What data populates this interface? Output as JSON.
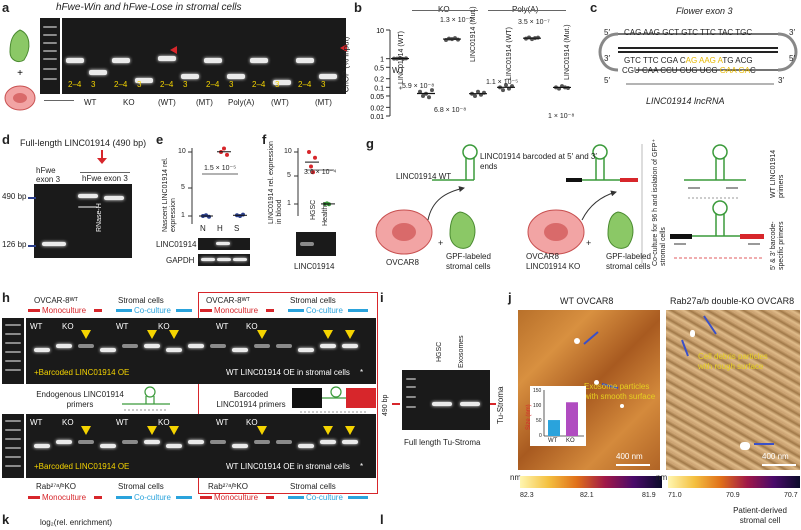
{
  "panel_a": {
    "label": "a",
    "title": "hFwe-Win and hFwe-Lose in stromal cells",
    "lane_marks": [
      "2–4",
      "3",
      "2–4",
      "3",
      "2–4",
      "3",
      "2–4",
      "3",
      "2–4",
      "3",
      "2–4",
      "3"
    ],
    "groups": [
      "WT",
      "KO",
      "(WT)",
      "(MT)",
      "Poly(A)",
      "(WT)",
      "(MT)"
    ]
  },
  "panel_b": {
    "label": "b",
    "ylabel": "ChOP (% input)",
    "yticks": [
      "10",
      "1",
      "0.5",
      "0.2",
      "0.1",
      "0.05",
      "0.02",
      "0.01"
    ],
    "header_ko": "KO",
    "header_polya": "Poly(A)",
    "cats": [
      "WT",
      "+ LINC01914 (WT)",
      "LINC01914 (Mut.)",
      "LINC01914 (WT)",
      "LINC01914 (Mut.)"
    ],
    "pvals": [
      "5.9 × 10⁻⁸",
      "1.3 × 10⁻⁵",
      "6.8 × 10⁻⁸",
      "1.1 × 10⁻⁵",
      "3.5 × 10⁻⁷",
      "1 × 10⁻⁸"
    ]
  },
  "panel_c": {
    "label": "c",
    "title": "Flower exon 3",
    "seq1": "CAG AAG GCT GTC TTC TAC TGC",
    "seq2a": "GTC TTC CGA C",
    "seq2b": "AG AAG A",
    "seq2c": "TG ACG",
    "seq3a": "CGU CAA CCU CUG UCG ",
    "seq3b": "GAA GA",
    "seq3c": "C",
    "p5a": "5′",
    "p3a": "3′",
    "p3b": "3′",
    "p5b": "5′",
    "p5c": "5′",
    "p3c": "3′",
    "caption": "LINC01914 lncRNA"
  },
  "panel_d": {
    "label": "d",
    "title": "Full-length LINC01914 (490 bp)",
    "lane1": "hFwe exon 3",
    "lane2": "hFwe exon 3",
    "marker1": "490 bp",
    "marker2": "126 bp",
    "side": "RNase-H"
  },
  "panel_e": {
    "label": "e",
    "ylabel": "Nascent LINC01914 rel. expression",
    "yticks": [
      "10",
      "5",
      "1"
    ],
    "pval": "1.5 × 10⁻⁵",
    "cats": [
      "N",
      "H",
      "S"
    ],
    "blot1": "LINC01914",
    "blot2": "GAPDH"
  },
  "panel_f": {
    "label": "f",
    "ylabel": "LINC01914 rel. expression in blood",
    "yticks": [
      "10",
      "5",
      "1"
    ],
    "pval": "3.6 × 10⁻⁴",
    "cats": [
      "HGSC",
      "Healthy"
    ],
    "blot": "LINC01914"
  },
  "panel_g": {
    "label": "g",
    "wt_label": "LINC01914 WT",
    "barcoded_label": "LINC01914 barcoded at 5′ and 3′ ends",
    "cell1": "OVCAR8",
    "cell2": "GPF-labeled stromal cells",
    "cell3": "OVCAR8 LINC01914 KO",
    "cell4": "GPF-labeled stromal cells",
    "coculture": "Co-culture for 96 h and isolation of GFP⁺ stromal cells",
    "primer1": "WT LINC01914 primers",
    "primer2": "5′ & 3′ barcode-specific primers",
    "plus1": "+",
    "plus2": "+"
  },
  "panel_h": {
    "label": "h",
    "top_left": "OVCAR-8ᵂᵀ",
    "stromal": "Stromal cells",
    "top_right": "OVCAR-8ᵂᵀ",
    "stromal2": "Stromal cells",
    "mono": "Monoculture",
    "co": "Co-culture",
    "mono2": "Monoculture",
    "co2": "Co-culture",
    "wt": "WT",
    "ko": "KO",
    "wt2": "WT",
    "ko2": "KO",
    "wt3": "WT",
    "ko3": "KO",
    "wt4": "WT",
    "ko4": "KO",
    "wt5": "WT",
    "ko5": "KO",
    "wt6": "WT",
    "ko6": "KO",
    "barcoded_oe": "+Barcoded LINC01914 OE",
    "barcoded_oe2": "+Barcoded LINC01914 OE",
    "wt_oe": "WT LINC01914 OE in stromal cells",
    "wt_oe2": "WT LINC01914 OE in stromal cells",
    "endog": "Endogenous LINC01914 primers",
    "barcoded_primers": "Barcoded LINC01914 primers",
    "bottom_left": "Rab²⁷ᵃ/ᵇKO",
    "bottom_stromal": "Stromal cells",
    "bottom_right": "Rab²⁷ᵃ/ᵇKO",
    "bottom_stromal2": "Stromal cells",
    "mono3": "Monoculture",
    "co3": "Co-culture",
    "mono4": "Monoculture",
    "co4": "Co-culture",
    "star1": "*",
    "star2": "*"
  },
  "panel_i": {
    "label": "i",
    "lanes": [
      "HGSC",
      "Exosomes"
    ],
    "marker": "490 bp",
    "side": "Tu-Stroma",
    "caption": "Full length Tu-Stroma"
  },
  "panel_j": {
    "label": "j",
    "title_left": "WT OVCAR8",
    "title_right": "Rab27a/b double-KO OVCAR8",
    "annot_left": "Exosome particles with smooth surface",
    "annot_right": "Cell debris particles with rough surface",
    "scale_left": "400 nm",
    "scale_right": "400 nm",
    "cb_unit": "nm",
    "cb_left": [
      "82.3",
      "82.1",
      "81.9"
    ],
    "cb_right": [
      "71.0",
      "70.9",
      "70.7"
    ],
    "cb_unit2": "nm",
    "inset_ylabel": "Size (nm)",
    "inset_yticks": [
      "150",
      "100",
      "50",
      "0"
    ],
    "inset_cats": [
      "WT",
      "KO"
    ],
    "inset_values": [
      52,
      110
    ],
    "caption_right": "Patient-derived stromal cell"
  },
  "panel_k": {
    "label": "k",
    "text": "log₂(rel. enrichment)"
  },
  "panel_l": {
    "label": "l"
  },
  "colors": {
    "red": "#d7262b",
    "blue": "#2aa3dc",
    "yellow": "#f5d400",
    "green": "#6fb84a",
    "salmon": "#f08a8a"
  }
}
